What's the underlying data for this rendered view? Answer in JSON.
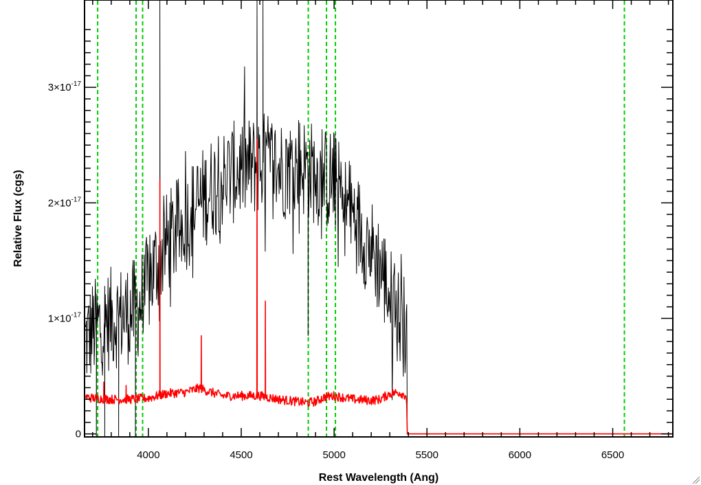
{
  "chart_data": {
    "type": "line",
    "title": "",
    "xlabel": "Rest Wavelength (Ang)",
    "ylabel": "Relative Flux (cgs)",
    "xlim": [
      3660,
      6820
    ],
    "ylim": [
      -2e-19,
      3.75e-17
    ],
    "x_ticks": [
      {
        "value": 4000,
        "label": "4000"
      },
      {
        "value": 4500,
        "label": "4500"
      },
      {
        "value": 5000,
        "label": "5000"
      },
      {
        "value": 5500,
        "label": "5500"
      },
      {
        "value": 6000,
        "label": "6000"
      },
      {
        "value": 6500,
        "label": "6500"
      }
    ],
    "y_ticks": [
      {
        "value": 0,
        "mantissa": "0",
        "exponent": ""
      },
      {
        "value": 1e-17,
        "mantissa": "1×10",
        "exponent": "-17"
      },
      {
        "value": 2e-17,
        "mantissa": "2×10",
        "exponent": "-17"
      },
      {
        "value": 3e-17,
        "mantissa": "3×10",
        "exponent": "-17"
      }
    ],
    "grid": false,
    "legend": "none",
    "series": [
      {
        "role": "flux",
        "color": "#000000",
        "x": [
          3660,
          3700,
          3750,
          3800,
          3850,
          3900,
          3950,
          4000,
          4050,
          4100,
          4150,
          4200,
          4250,
          4300,
          4350,
          4400,
          4450,
          4500,
          4550,
          4600,
          4650,
          4700,
          4750,
          4800,
          4850,
          4900,
          4950,
          5000,
          5050,
          5100,
          5150,
          5200,
          5250,
          5300,
          5350,
          5390,
          5395,
          5400,
          6820
        ],
        "y": [
          8e-18,
          9e-18,
          9.5e-18,
          1e-17,
          1.02e-17,
          1.05e-17,
          1.1e-17,
          1.3e-17,
          1.5e-17,
          1.65e-17,
          1.75e-17,
          1.85e-17,
          1.95e-17,
          2.05e-17,
          2.15e-17,
          2.2e-17,
          2.25e-17,
          2.3e-17,
          2.3e-17,
          2.35e-17,
          2.35e-17,
          2.3e-17,
          2.3e-17,
          2.35e-17,
          2.3e-17,
          2.25e-17,
          2.2e-17,
          2.2e-17,
          2e-17,
          1.9e-17,
          1.75e-17,
          1.6e-17,
          1.45e-17,
          1.2e-17,
          1e-17,
          9e-18,
          0,
          0,
          0
        ],
        "noise": 4.5e-18,
        "spikes": [
          {
            "x": 4062,
            "y": 3.8e-17
          },
          {
            "x": 4585,
            "y": 3.8e-17
          },
          {
            "x": 4617,
            "y": 3.8e-17
          },
          {
            "x": 3720,
            "y": -1e-18
          },
          {
            "x": 3765,
            "y": -1e-18
          },
          {
            "x": 3840,
            "y": -1e-18
          },
          {
            "x": 3930,
            "y": -1e-18
          },
          {
            "x": 4860,
            "y": 8.5e-18
          }
        ]
      },
      {
        "role": "error",
        "color": "#ff0000",
        "x": [
          3660,
          3700,
          3800,
          3900,
          4000,
          4050,
          4100,
          4200,
          4280,
          4300,
          4400,
          4500,
          4600,
          4700,
          4800,
          4850,
          4900,
          4950,
          5000,
          5100,
          5200,
          5250,
          5300,
          5350,
          5390,
          5395,
          5400,
          6820
        ],
        "y": [
          3.2e-18,
          3.1e-18,
          3e-18,
          3e-18,
          3.1e-18,
          3.3e-18,
          3.5e-18,
          3.6e-18,
          4e-18,
          3.8e-18,
          3.3e-18,
          3.3e-18,
          3.3e-18,
          3e-18,
          2.8e-18,
          2.7e-18,
          2.8e-18,
          3.2e-18,
          3.3e-18,
          3e-18,
          2.9e-18,
          3e-18,
          3.5e-18,
          3.6e-18,
          3.3e-18,
          0,
          0,
          0
        ],
        "noise": 4e-19,
        "spikes": [
          {
            "x": 4062,
            "y": 2.2e-17
          },
          {
            "x": 4285,
            "y": 8.5e-18
          },
          {
            "x": 4585,
            "y": 2.55e-17
          },
          {
            "x": 4630,
            "y": 1.15e-17
          },
          {
            "x": 3880,
            "y": 4.2e-18
          },
          {
            "x": 3760,
            "y": 4.5e-18
          }
        ]
      }
    ],
    "reference_lines": {
      "color": "#00cc00",
      "style": "dashed",
      "x": [
        3727,
        3934,
        3969,
        4861,
        4959,
        5007,
        6563
      ]
    }
  }
}
